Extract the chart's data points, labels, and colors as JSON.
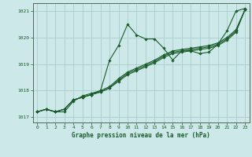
{
  "title": "Graphe pression niveau de la mer (hPa)",
  "bg_color": "#cce8e8",
  "grid_color": "#aacccc",
  "line_color": "#1a5c2a",
  "xlim": [
    -0.5,
    23.5
  ],
  "ylim": [
    1016.8,
    1021.3
  ],
  "yticks": [
    1017,
    1018,
    1019,
    1020,
    1021
  ],
  "xticks": [
    0,
    1,
    2,
    3,
    4,
    5,
    6,
    7,
    8,
    9,
    10,
    11,
    12,
    13,
    14,
    15,
    16,
    17,
    18,
    19,
    20,
    21,
    22,
    23
  ],
  "series": [
    [
      1017.2,
      1017.3,
      1017.2,
      1017.2,
      1017.6,
      1017.8,
      1017.9,
      1018.0,
      1019.15,
      1019.7,
      1020.5,
      1020.1,
      1019.95,
      1019.95,
      1019.6,
      1019.15,
      1019.5,
      1019.5,
      1019.4,
      1019.45,
      1019.75,
      1020.25,
      1021.0,
      1021.1
    ],
    [
      1017.2,
      1017.3,
      1017.2,
      1017.3,
      1017.65,
      1017.75,
      1017.85,
      1017.95,
      1018.1,
      1018.4,
      1018.65,
      1018.8,
      1018.95,
      1019.1,
      1019.3,
      1019.45,
      1019.5,
      1019.55,
      1019.6,
      1019.65,
      1019.75,
      1019.95,
      1020.25,
      1021.05
    ],
    [
      1017.2,
      1017.3,
      1017.2,
      1017.3,
      1017.65,
      1017.75,
      1017.85,
      1017.95,
      1018.1,
      1018.35,
      1018.6,
      1018.75,
      1018.9,
      1019.05,
      1019.25,
      1019.4,
      1019.45,
      1019.5,
      1019.55,
      1019.6,
      1019.7,
      1019.9,
      1020.2,
      1021.05
    ],
    [
      1017.2,
      1017.3,
      1017.2,
      1017.3,
      1017.65,
      1017.75,
      1017.85,
      1018.0,
      1018.15,
      1018.45,
      1018.7,
      1018.85,
      1019.0,
      1019.15,
      1019.35,
      1019.5,
      1019.55,
      1019.6,
      1019.65,
      1019.7,
      1019.8,
      1020.0,
      1020.3,
      1021.05
    ]
  ]
}
